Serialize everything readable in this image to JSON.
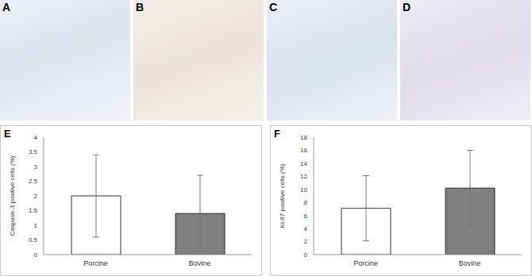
{
  "image_panels": [
    {
      "label": "A"
    },
    {
      "label": "B"
    },
    {
      "label": "C"
    },
    {
      "label": "D"
    }
  ],
  "chart_data": [
    {
      "type": "bar",
      "title": "E",
      "ylabel": "Caspase-3 positive cells (%)",
      "categories": [
        "Porcine",
        "Bovine"
      ],
      "values": [
        2.0,
        1.4
      ],
      "errors": [
        1.4,
        1.3
      ],
      "colors": [
        "#ffffff",
        "#808080"
      ],
      "ylim": [
        0,
        4
      ],
      "yticks": [
        0,
        0.5,
        1,
        1.5,
        2,
        2.5,
        3,
        3.5,
        4
      ],
      "grid": false
    },
    {
      "type": "bar",
      "title": "F",
      "ylabel": "Ki-67 positive cells (%)",
      "categories": [
        "Porcine",
        "Bovine"
      ],
      "values": [
        7.1,
        10.2
      ],
      "errors": [
        5.0,
        5.8
      ],
      "colors": [
        "#ffffff",
        "#808080"
      ],
      "ylim": [
        0,
        18
      ],
      "yticks": [
        0,
        2,
        4,
        6,
        8,
        10,
        12,
        14,
        16,
        18
      ],
      "grid": false
    }
  ]
}
